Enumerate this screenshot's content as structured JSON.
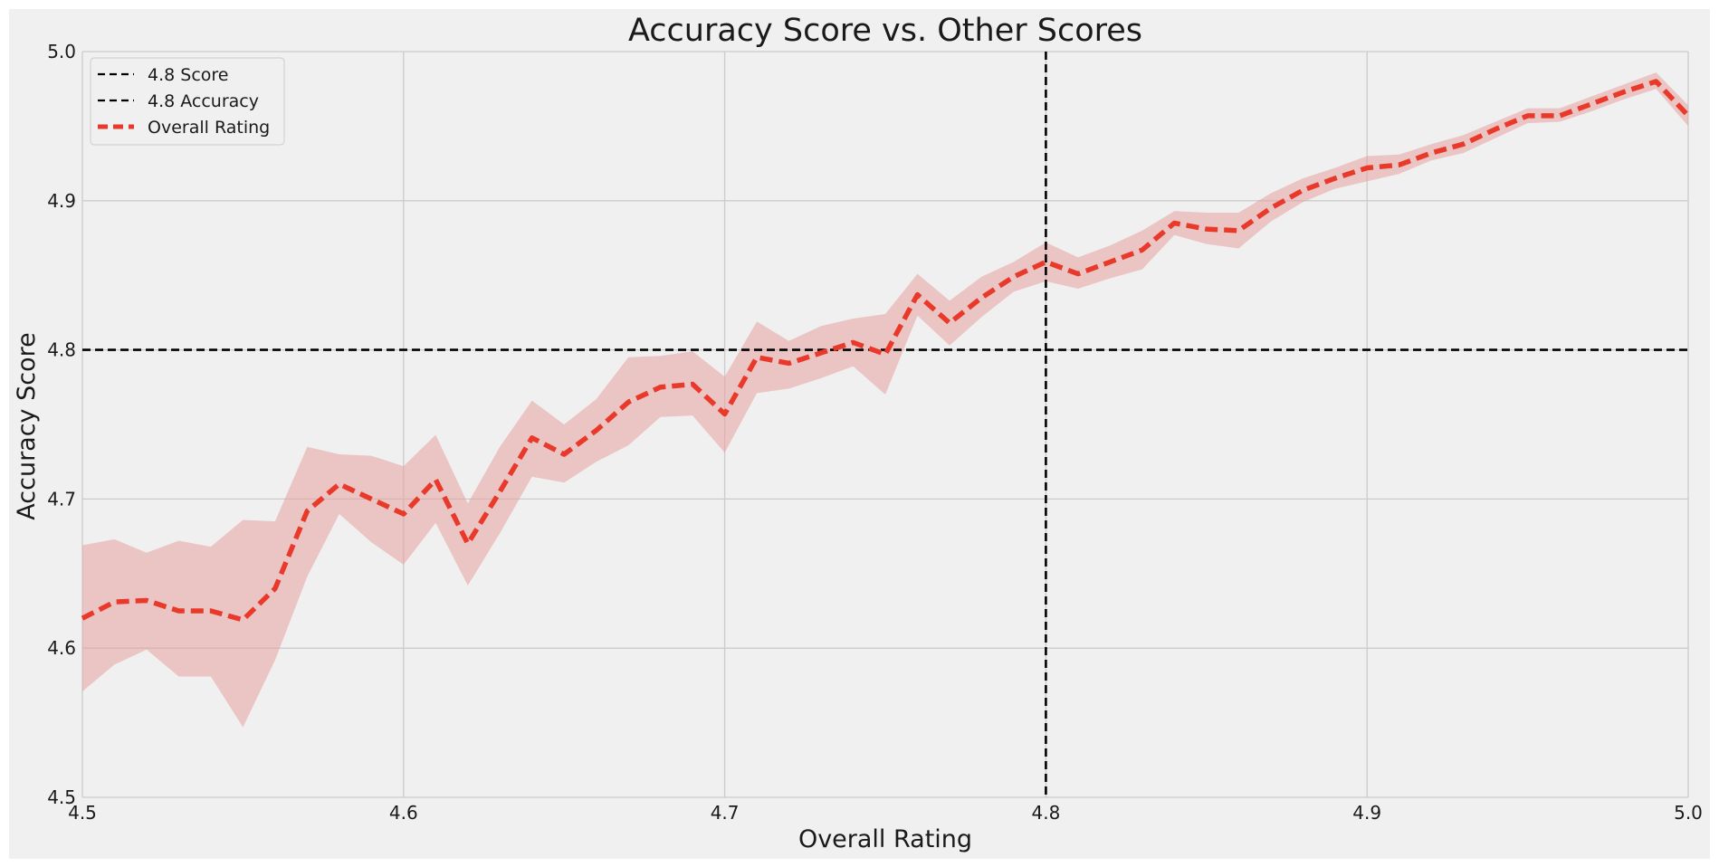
{
  "chart_data": {
    "type": "line",
    "title": "Accuracy Score vs. Other Scores",
    "xlabel": "Overall Rating",
    "ylabel": "Accuracy Score",
    "xlim": [
      4.5,
      5.0
    ],
    "ylim": [
      4.5,
      5.0
    ],
    "xticks": [
      "4.5",
      "4.6",
      "4.7",
      "4.8",
      "4.9",
      "5.0"
    ],
    "yticks": [
      "4.5",
      "4.6",
      "4.7",
      "4.8",
      "4.9",
      "5.0"
    ],
    "grid": true,
    "legend_position": "top-left",
    "colors": {
      "background": "#f0f0f0",
      "grid": "#cbcbcb",
      "series": "#e8392a",
      "band": "#e8a0a0",
      "reference": "#000000"
    },
    "reference_lines": [
      {
        "name": "4.8 Score",
        "orientation": "vertical",
        "value": 4.8
      },
      {
        "name": "4.8 Accuracy",
        "orientation": "horizontal",
        "value": 4.8
      }
    ],
    "series": [
      {
        "name": "Overall Rating",
        "style": "dashed",
        "x": [
          4.5,
          4.51,
          4.52,
          4.53,
          4.54,
          4.55,
          4.56,
          4.57,
          4.58,
          4.59,
          4.6,
          4.61,
          4.62,
          4.63,
          4.64,
          4.65,
          4.66,
          4.67,
          4.68,
          4.69,
          4.7,
          4.71,
          4.72,
          4.73,
          4.74,
          4.75,
          4.76,
          4.77,
          4.78,
          4.79,
          4.8,
          4.81,
          4.82,
          4.83,
          4.84,
          4.85,
          4.86,
          4.87,
          4.88,
          4.89,
          4.9,
          4.91,
          4.92,
          4.93,
          4.94,
          4.95,
          4.96,
          4.97,
          4.98,
          4.99,
          5.0
        ],
        "y": [
          4.62,
          4.631,
          4.632,
          4.625,
          4.625,
          4.619,
          4.64,
          4.692,
          4.71,
          4.7,
          4.69,
          4.713,
          4.67,
          4.705,
          4.741,
          4.73,
          4.746,
          4.765,
          4.775,
          4.777,
          4.757,
          4.795,
          4.791,
          4.798,
          4.805,
          4.797,
          4.837,
          4.818,
          4.835,
          4.849,
          4.859,
          4.851,
          4.859,
          4.867,
          4.885,
          4.881,
          4.88,
          4.895,
          4.907,
          4.915,
          4.922,
          4.924,
          4.932,
          4.938,
          4.948,
          4.957,
          4.957,
          4.965,
          4.973,
          4.98,
          4.957
        ],
        "lower": [
          4.571,
          4.589,
          4.599,
          4.581,
          4.581,
          4.547,
          4.592,
          4.648,
          4.69,
          4.671,
          4.656,
          4.684,
          4.642,
          4.677,
          4.715,
          4.711,
          4.725,
          4.736,
          4.755,
          4.756,
          4.731,
          4.771,
          4.774,
          4.781,
          4.789,
          4.77,
          4.823,
          4.803,
          4.822,
          4.839,
          4.846,
          4.841,
          4.848,
          4.854,
          4.877,
          4.871,
          4.868,
          4.886,
          4.899,
          4.908,
          4.913,
          4.918,
          4.927,
          4.932,
          4.942,
          4.952,
          4.953,
          4.96,
          4.968,
          4.975,
          4.95
        ],
        "upper": [
          4.669,
          4.673,
          4.664,
          4.672,
          4.668,
          4.686,
          4.685,
          4.735,
          4.73,
          4.729,
          4.722,
          4.743,
          4.697,
          4.735,
          4.766,
          4.75,
          4.767,
          4.795,
          4.796,
          4.799,
          4.782,
          4.819,
          4.806,
          4.816,
          4.821,
          4.824,
          4.851,
          4.833,
          4.849,
          4.859,
          4.872,
          4.862,
          4.87,
          4.88,
          4.893,
          4.892,
          4.892,
          4.905,
          4.915,
          4.922,
          4.93,
          4.931,
          4.938,
          4.944,
          4.953,
          4.962,
          4.962,
          4.97,
          4.978,
          4.986,
          4.964
        ]
      }
    ]
  }
}
